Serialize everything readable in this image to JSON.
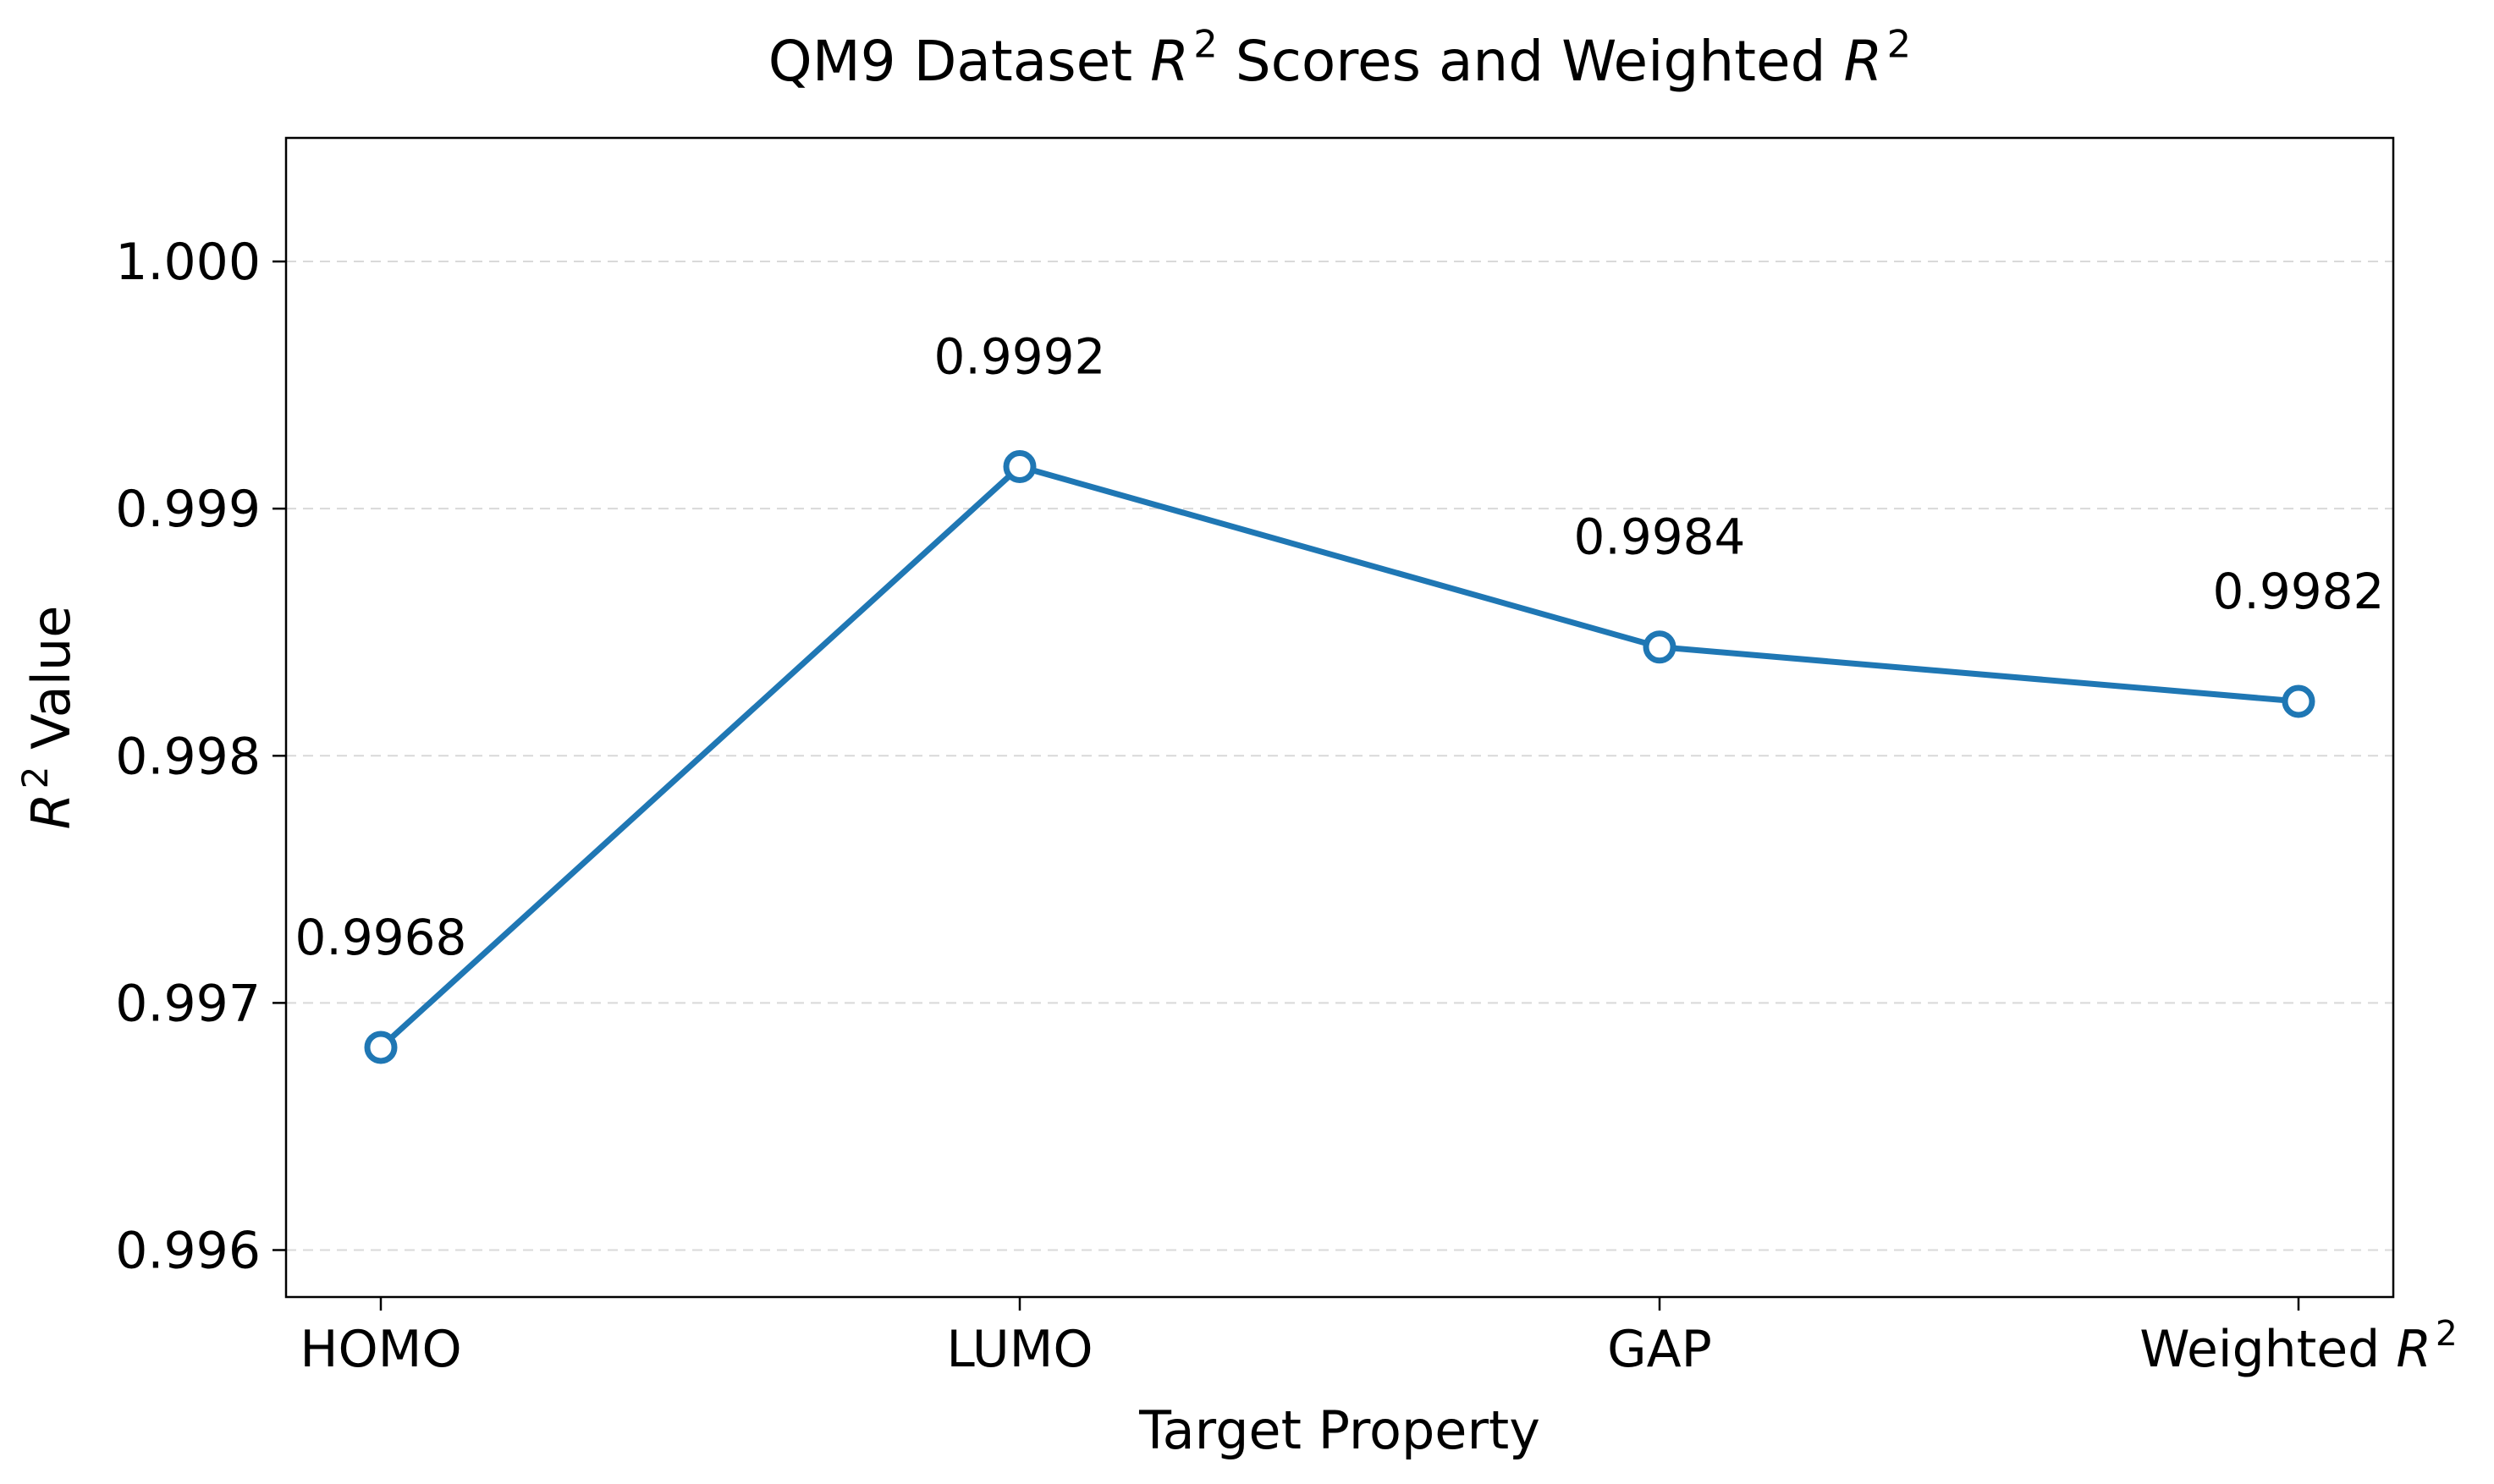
{
  "chart_data": {
    "type": "line",
    "title_parts": [
      "QM9 Dataset ",
      "R",
      "2",
      " Scores and Weighted ",
      "R",
      "2"
    ],
    "xlabel": "Target Property",
    "ylabel_parts": [
      "R",
      "2",
      " Value"
    ],
    "categories": [
      {
        "parts": [
          "HOMO"
        ]
      },
      {
        "parts": [
          "LUMO"
        ]
      },
      {
        "parts": [
          "GAP"
        ]
      },
      {
        "parts": [
          "Weighted ",
          "R",
          "2"
        ]
      }
    ],
    "series": [
      {
        "values": [
          0.99682,
          0.99917,
          0.99844,
          0.99822
        ],
        "labels": [
          "0.9968",
          "0.9992",
          "0.9984",
          "0.9982"
        ],
        "color": "#1f77b4",
        "marker": "open-circle"
      }
    ],
    "ylim": [
      0.99581,
      1.0005
    ],
    "yticks": [
      0.996,
      0.997,
      0.998,
      0.999,
      1.0
    ],
    "ytick_labels": [
      "0.996",
      "0.997",
      "0.998",
      "0.999",
      "1.000"
    ],
    "grid": "horizontal-dashed",
    "legend": "none"
  }
}
